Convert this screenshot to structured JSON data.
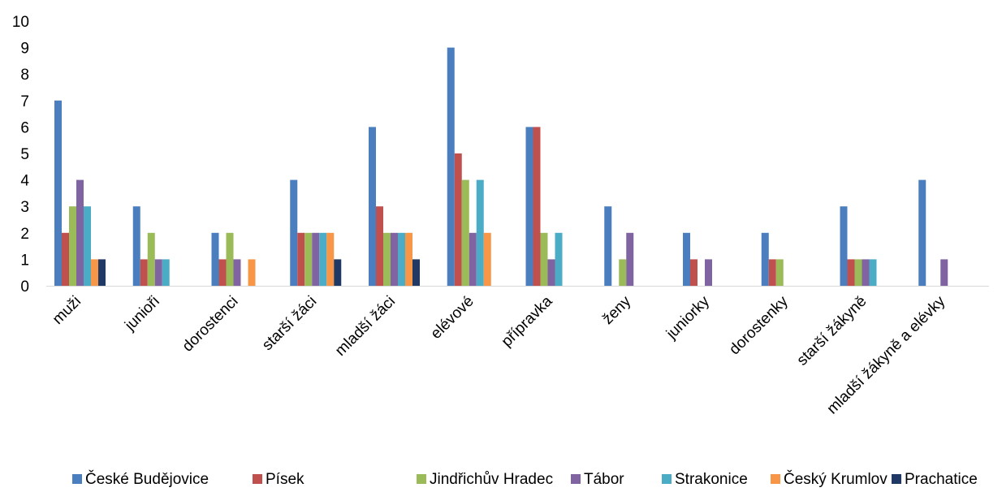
{
  "chart_data": {
    "type": "bar",
    "title": "",
    "xlabel": "",
    "ylabel": "",
    "ylim": [
      0,
      10
    ],
    "yticks": [
      0,
      1,
      2,
      3,
      4,
      5,
      6,
      7,
      8,
      9,
      10
    ],
    "grid": false,
    "legend_position": "bottom",
    "categories": [
      "muži",
      "junioři",
      "dorostenci",
      "starší žáci",
      "mladší žáci",
      "elévové",
      "přípravka",
      "ženy",
      "juniorky",
      "dorostenky",
      "starší žákyně",
      "mladší žákyně a elévky"
    ],
    "series": [
      {
        "name": "České Budějovice",
        "color": "#4A7EBF",
        "values": [
          7,
          3,
          2,
          4,
          6,
          9,
          6,
          3,
          2,
          2,
          3,
          4
        ]
      },
      {
        "name": "Písek",
        "color": "#C0504D",
        "values": [
          2,
          1,
          1,
          2,
          3,
          5,
          6,
          0,
          1,
          1,
          1,
          0
        ]
      },
      {
        "name": "Jindřichův Hradec",
        "color": "#9BBB59",
        "values": [
          3,
          2,
          2,
          2,
          2,
          4,
          2,
          1,
          0,
          1,
          1,
          0
        ]
      },
      {
        "name": "Tábor",
        "color": "#8064A2",
        "values": [
          4,
          1,
          1,
          2,
          2,
          2,
          1,
          2,
          1,
          0,
          1,
          1
        ]
      },
      {
        "name": "Strakonice",
        "color": "#4BACC6",
        "values": [
          3,
          1,
          0,
          2,
          2,
          4,
          2,
          0,
          0,
          0,
          1,
          0
        ]
      },
      {
        "name": "Český Krumlov",
        "color": "#F79646",
        "values": [
          1,
          0,
          1,
          2,
          2,
          2,
          0,
          0,
          0,
          0,
          0,
          0
        ]
      },
      {
        "name": "Prachatice",
        "color": "#1F3864",
        "values": [
          1,
          0,
          0,
          1,
          1,
          0,
          0,
          0,
          0,
          0,
          0,
          0
        ]
      }
    ]
  }
}
